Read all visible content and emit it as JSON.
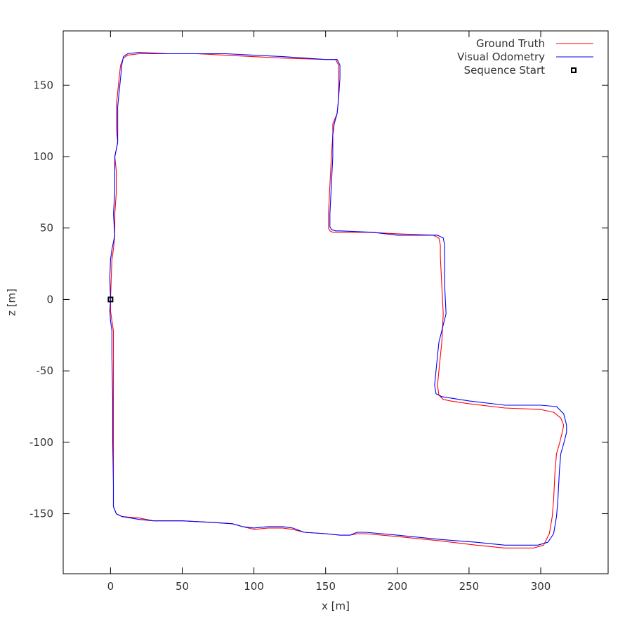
{
  "chart_data": {
    "type": "line",
    "title": "",
    "xlabel": "x [m]",
    "ylabel": "z [m]",
    "xlim": [
      -33,
      347
    ],
    "ylim": [
      -192,
      188
    ],
    "grid": false,
    "legend_position": "top-right",
    "x_ticks": [
      0,
      50,
      100,
      150,
      200,
      250,
      300
    ],
    "y_ticks": [
      150,
      100,
      50,
      0,
      -50,
      -100,
      -150
    ],
    "x_tick_labels": [
      "0",
      "50",
      "100",
      "150",
      "200",
      "250",
      "300"
    ],
    "y_tick_labels": [
      "150",
      "100",
      "50",
      "0",
      "-50",
      "-100",
      "-150"
    ],
    "series": [
      {
        "name": "Ground Truth",
        "color": "#ff0000",
        "points": [
          [
            0,
            0
          ],
          [
            0,
            -8
          ],
          [
            1,
            -15
          ],
          [
            2,
            -22
          ],
          [
            2,
            -40
          ],
          [
            2,
            -70
          ],
          [
            2,
            -100
          ],
          [
            2,
            -130
          ],
          [
            2,
            -145
          ],
          [
            4,
            -150
          ],
          [
            8,
            -152
          ],
          [
            20,
            -153
          ],
          [
            30,
            -155
          ],
          [
            50,
            -155
          ],
          [
            70,
            -156
          ],
          [
            85,
            -157
          ],
          [
            92,
            -159
          ],
          [
            100,
            -161
          ],
          [
            110,
            -160
          ],
          [
            120,
            -160
          ],
          [
            127,
            -161
          ],
          [
            135,
            -163
          ],
          [
            150,
            -164
          ],
          [
            160,
            -165
          ],
          [
            167,
            -165
          ],
          [
            172,
            -164
          ],
          [
            178,
            -164
          ],
          [
            200,
            -166
          ],
          [
            230,
            -169
          ],
          [
            255,
            -172
          ],
          [
            275,
            -174
          ],
          [
            295,
            -174
          ],
          [
            302,
            -172
          ],
          [
            306,
            -164
          ],
          [
            308,
            -152
          ],
          [
            309,
            -140
          ],
          [
            310,
            -120
          ],
          [
            311,
            -108
          ],
          [
            313,
            -101
          ],
          [
            315,
            -93
          ],
          [
            316,
            -88
          ],
          [
            314,
            -83
          ],
          [
            309,
            -79
          ],
          [
            300,
            -77
          ],
          [
            275,
            -76
          ],
          [
            250,
            -73
          ],
          [
            237,
            -71
          ],
          [
            232,
            -70
          ],
          [
            229,
            -67
          ],
          [
            228,
            -60
          ],
          [
            229,
            -50
          ],
          [
            231,
            -30
          ],
          [
            232,
            -10
          ],
          [
            231,
            10
          ],
          [
            230,
            30
          ],
          [
            230,
            38
          ],
          [
            229,
            43
          ],
          [
            225,
            45
          ],
          [
            200,
            46
          ],
          [
            180,
            47
          ],
          [
            160,
            47
          ],
          [
            155,
            47
          ],
          [
            153,
            48
          ],
          [
            152,
            50
          ],
          [
            152,
            60
          ],
          [
            153,
            80
          ],
          [
            154,
            100
          ],
          [
            155,
            115
          ],
          [
            155,
            123
          ],
          [
            158,
            130
          ],
          [
            159,
            140
          ],
          [
            159,
            155
          ],
          [
            159,
            164
          ],
          [
            157,
            168
          ],
          [
            150,
            168
          ],
          [
            120,
            169
          ],
          [
            80,
            171
          ],
          [
            60,
            172
          ],
          [
            40,
            172
          ],
          [
            20,
            172
          ],
          [
            12,
            171
          ],
          [
            9,
            169
          ],
          [
            7,
            164
          ],
          [
            6,
            155
          ],
          [
            5,
            145
          ],
          [
            4,
            135
          ],
          [
            4,
            120
          ],
          [
            5,
            110
          ],
          [
            4,
            105
          ],
          [
            3,
            100
          ],
          [
            4,
            90
          ],
          [
            4,
            75
          ],
          [
            3,
            60
          ],
          [
            3,
            45
          ],
          [
            2,
            35
          ],
          [
            1,
            28
          ],
          [
            0.5,
            15
          ],
          [
            0,
            0
          ]
        ]
      },
      {
        "name": "Visual Odometry",
        "color": "#0000ff",
        "points": [
          [
            0,
            0
          ],
          [
            -0.5,
            -8
          ],
          [
            0,
            -15
          ],
          [
            1,
            -22
          ],
          [
            1,
            -40
          ],
          [
            1.5,
            -70
          ],
          [
            1.5,
            -100
          ],
          [
            2,
            -130
          ],
          [
            2,
            -145
          ],
          [
            4,
            -150
          ],
          [
            8,
            -152
          ],
          [
            20,
            -154
          ],
          [
            30,
            -155
          ],
          [
            50,
            -155
          ],
          [
            70,
            -156
          ],
          [
            85,
            -157
          ],
          [
            92,
            -159
          ],
          [
            100,
            -160
          ],
          [
            110,
            -159
          ],
          [
            120,
            -159
          ],
          [
            127,
            -160
          ],
          [
            135,
            -163
          ],
          [
            150,
            -164
          ],
          [
            160,
            -165
          ],
          [
            167,
            -165
          ],
          [
            172,
            -163
          ],
          [
            178,
            -163
          ],
          [
            200,
            -165
          ],
          [
            230,
            -168
          ],
          [
            255,
            -170
          ],
          [
            275,
            -172
          ],
          [
            298,
            -172
          ],
          [
            305,
            -170
          ],
          [
            309,
            -164
          ],
          [
            311,
            -152
          ],
          [
            312,
            -140
          ],
          [
            313,
            -120
          ],
          [
            314,
            -108
          ],
          [
            316,
            -101
          ],
          [
            318,
            -93
          ],
          [
            318,
            -88
          ],
          [
            316,
            -80
          ],
          [
            311,
            -75
          ],
          [
            300,
            -74
          ],
          [
            275,
            -74
          ],
          [
            250,
            -71
          ],
          [
            237,
            -69
          ],
          [
            231,
            -68
          ],
          [
            227,
            -66
          ],
          [
            226,
            -60
          ],
          [
            227,
            -50
          ],
          [
            229,
            -30
          ],
          [
            234,
            -10
          ],
          [
            233,
            10
          ],
          [
            233,
            30
          ],
          [
            233,
            38
          ],
          [
            232,
            43
          ],
          [
            228,
            45
          ],
          [
            200,
            45
          ],
          [
            183,
            47
          ],
          [
            160,
            48
          ],
          [
            157,
            48
          ],
          [
            154,
            49
          ],
          [
            153,
            51
          ],
          [
            153,
            60
          ],
          [
            154,
            80
          ],
          [
            155,
            100
          ],
          [
            155,
            115
          ],
          [
            156,
            123
          ],
          [
            158,
            130
          ],
          [
            159,
            140
          ],
          [
            160,
            155
          ],
          [
            160,
            164
          ],
          [
            158,
            168
          ],
          [
            150,
            168
          ],
          [
            120,
            170
          ],
          [
            80,
            172
          ],
          [
            60,
            172
          ],
          [
            40,
            172
          ],
          [
            20,
            173
          ],
          [
            12,
            172
          ],
          [
            9,
            170
          ],
          [
            8,
            165
          ],
          [
            7,
            155
          ],
          [
            6,
            145
          ],
          [
            5,
            135
          ],
          [
            5,
            120
          ],
          [
            5,
            110
          ],
          [
            4,
            105
          ],
          [
            3,
            100
          ],
          [
            3,
            90
          ],
          [
            3,
            75
          ],
          [
            2,
            60
          ],
          [
            3,
            45
          ],
          [
            1,
            35
          ],
          [
            0,
            28
          ],
          [
            -0.5,
            15
          ],
          [
            0,
            0
          ]
        ]
      },
      {
        "name": "Sequence Start",
        "type": "marker",
        "color": "#000000",
        "points": [
          [
            0,
            0
          ]
        ]
      }
    ]
  }
}
